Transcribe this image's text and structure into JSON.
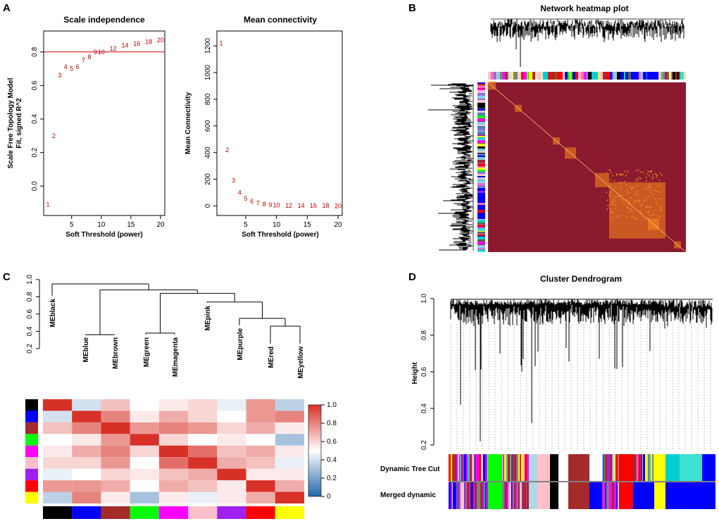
{
  "panels": {
    "a": "A",
    "b": "B",
    "c": "C",
    "d": "D"
  },
  "chart_data": [
    {
      "id": "scale-independence",
      "type": "scatter",
      "title": "Scale independence",
      "xlabel": "Soft Threshold (power)",
      "ylabel_line1": "Scale Free Topology Model",
      "ylabel_line2": "Fit, signed R^2",
      "xlim": [
        1,
        20
      ],
      "ylim": [
        -0.15,
        0.9
      ],
      "xticks": [
        "5",
        "10",
        "15",
        "20"
      ],
      "yticks": [
        "0.0",
        "0.2",
        "0.4",
        "0.6",
        "0.8"
      ],
      "threshold_line": 0.8,
      "points": [
        {
          "label": "1",
          "x": 1,
          "y": -0.11
        },
        {
          "label": "2",
          "x": 2,
          "y": 0.3
        },
        {
          "label": "3",
          "x": 3,
          "y": 0.66
        },
        {
          "label": "4",
          "x": 4,
          "y": 0.71
        },
        {
          "label": "5",
          "x": 5,
          "y": 0.7
        },
        {
          "label": "6",
          "x": 6,
          "y": 0.71
        },
        {
          "label": "7",
          "x": 7,
          "y": 0.75
        },
        {
          "label": "8",
          "x": 8,
          "y": 0.77
        },
        {
          "label": "9",
          "x": 9,
          "y": 0.8
        },
        {
          "label": "10",
          "x": 10,
          "y": 0.8
        },
        {
          "label": "12",
          "x": 12,
          "y": 0.82
        },
        {
          "label": "14",
          "x": 14,
          "y": 0.84
        },
        {
          "label": "16",
          "x": 16,
          "y": 0.85
        },
        {
          "label": "18",
          "x": 18,
          "y": 0.86
        },
        {
          "label": "20",
          "x": 20,
          "y": 0.87
        }
      ]
    },
    {
      "id": "mean-connectivity",
      "type": "scatter",
      "title": "Mean connectivity",
      "xlabel": "Soft Threshold (power)",
      "ylabel": "Mean Connectivity",
      "xlim": [
        1,
        20
      ],
      "ylim": [
        -40,
        1280
      ],
      "xticks": [
        "5",
        "10",
        "15",
        "20"
      ],
      "yticks": [
        "0",
        "200",
        "400",
        "600",
        "800",
        "1000",
        "1200"
      ],
      "points": [
        {
          "label": "1",
          "x": 1,
          "y": 1220
        },
        {
          "label": "2",
          "x": 2,
          "y": 420
        },
        {
          "label": "3",
          "x": 3,
          "y": 190
        },
        {
          "label": "4",
          "x": 4,
          "y": 100
        },
        {
          "label": "5",
          "x": 5,
          "y": 55
        },
        {
          "label": "6",
          "x": 6,
          "y": 35
        },
        {
          "label": "7",
          "x": 7,
          "y": 20
        },
        {
          "label": "8",
          "x": 8,
          "y": 12
        },
        {
          "label": "9",
          "x": 9,
          "y": 8
        },
        {
          "label": "10",
          "x": 10,
          "y": 5
        },
        {
          "label": "12",
          "x": 12,
          "y": 3
        },
        {
          "label": "14",
          "x": 14,
          "y": 2
        },
        {
          "label": "16",
          "x": 16,
          "y": 1
        },
        {
          "label": "18",
          "x": 18,
          "y": 1
        },
        {
          "label": "20",
          "x": 20,
          "y": 0
        }
      ]
    },
    {
      "id": "network-heatmap",
      "type": "heatmap",
      "title": "Network heatmap plot"
    },
    {
      "id": "eigengene-dendrogram",
      "type": "dendrogram",
      "yticks": [
        "0.2",
        "0.4",
        "0.6",
        "0.8",
        "1.0"
      ],
      "ylim": [
        0.2,
        1.0
      ],
      "leaves": [
        "MEblack",
        "MEblue",
        "MEbrown",
        "MEgreen",
        "MEmagenta",
        "MEpink",
        "MEpurple",
        "MEred",
        "MEyellow"
      ],
      "merges": [
        {
          "a": "L1",
          "b": "L2",
          "h": 0.36,
          "id": "m1"
        },
        {
          "a": "L3",
          "b": "L4",
          "h": 0.38,
          "id": "m2"
        },
        {
          "a": "L7",
          "b": "L8",
          "h": 0.46,
          "id": "m3"
        },
        {
          "a": "L6",
          "b": "m3",
          "h": 0.55,
          "id": "m4"
        },
        {
          "a": "L5",
          "b": "m4",
          "h": 0.74,
          "id": "m5"
        },
        {
          "a": "m2",
          "b": "m5",
          "h": 0.84,
          "id": "m6"
        },
        {
          "a": "m1",
          "b": "m6",
          "h": 0.88,
          "id": "m7"
        },
        {
          "a": "L0",
          "b": "m7",
          "h": 0.95,
          "id": "m8"
        }
      ]
    },
    {
      "id": "eigengene-adjacency",
      "type": "heatmap",
      "module_colors": [
        "#000000",
        "#0000ff",
        "#a52a2a",
        "#00ff00",
        "#ff00ff",
        "#ffc0cb",
        "#a020f0",
        "#ff0000",
        "#ffff00"
      ],
      "matrix": [
        [
          1.0,
          0.4,
          0.65,
          0.5,
          0.55,
          0.6,
          0.45,
          0.75,
          0.35
        ],
        [
          0.4,
          1.0,
          0.8,
          0.55,
          0.7,
          0.6,
          0.5,
          0.75,
          0.8
        ],
        [
          0.65,
          0.8,
          1.0,
          0.75,
          0.8,
          0.75,
          0.6,
          0.7,
          0.55
        ],
        [
          0.5,
          0.55,
          0.75,
          1.0,
          0.6,
          0.5,
          0.55,
          0.5,
          0.3
        ],
        [
          0.55,
          0.7,
          0.8,
          0.6,
          1.0,
          0.85,
          0.65,
          0.7,
          0.55
        ],
        [
          0.6,
          0.6,
          0.75,
          0.5,
          0.85,
          1.0,
          0.7,
          0.65,
          0.45
        ],
        [
          0.45,
          0.5,
          0.6,
          0.55,
          0.65,
          0.7,
          1.0,
          0.55,
          0.55
        ],
        [
          0.75,
          0.75,
          0.7,
          0.5,
          0.7,
          0.65,
          0.55,
          1.0,
          0.7
        ],
        [
          0.35,
          0.8,
          0.55,
          0.3,
          0.55,
          0.45,
          0.55,
          0.7,
          1.0
        ]
      ],
      "colorbar_ticks": [
        "1.0",
        "0.8",
        "0.6",
        "0.4",
        "0.2",
        "0"
      ],
      "colorbar_range": [
        0,
        1
      ]
    },
    {
      "id": "cluster-dendrogram",
      "type": "dendrogram",
      "title": "Cluster Dendrogram",
      "ylabel": "Height",
      "yticks": [
        "0.2",
        "0.4",
        "0.6",
        "0.8",
        "1.0"
      ],
      "ylim": [
        0.2,
        1.0
      ],
      "color_rows": [
        "Dynamic Tree Cut",
        "Merged dynamic"
      ]
    }
  ]
}
